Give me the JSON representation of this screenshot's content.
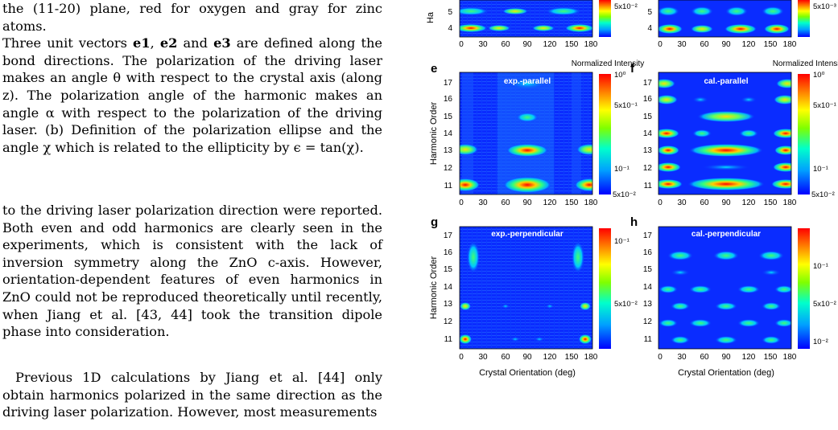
{
  "text_column": {
    "caption_lines": [
      "the (11-20) plane, red for oxygen and gray for zinc atoms.",
      "Three unit vectors ",
      "e1",
      ", ",
      "e2",
      " and ",
      "e3",
      " are defined along the bond directions. The polarization of the driving laser makes an angle θ with respect to the crystal axis (along z). The polarization angle of the harmonic makes an angle α with respect to the polarization of the driving laser. (b) Definition of the polarization ellipse and the angle χ which is related to the ellipticity by ϵ = tan(χ)."
    ],
    "paragraph1": "to the driving laser polarization direction were reported. Both even and odd harmonics are clearly seen in the experiments, which is consistent with the lack of inversion symmetry along the ZnO c-axis. However, orientation-dependent features of even harmonics in ZnO could not be reproduced theoretically until recently, when Jiang et al. [43, 44] took the transition dipole phase into consideration.",
    "paragraph2": "Previous 1D calculations by Jiang et al. [44] only obtain harmonics polarized in the same direction as the driving laser polarization. However, most measurements"
  },
  "figure": {
    "panels_top_partial": {
      "left_ylabel_fragment": "Ha",
      "left_yticks": [
        "5",
        "4"
      ],
      "right_yticks": [
        "5",
        "4"
      ],
      "left_colorbar_tick": "5x10⁻²",
      "right_colorbar_tick": "5x10⁻³",
      "xticks": [
        "0",
        "30",
        "60",
        "90",
        "120",
        "150",
        "180"
      ]
    },
    "panels": [
      {
        "letter": "e",
        "title": "exp.-parallel",
        "colorbar_label": "Normalized Intensity",
        "colorbar_ticks": [
          "10⁰",
          "5x10⁻¹",
          "10⁻¹",
          "5x10⁻²"
        ],
        "ylabel": "Harmonic Order",
        "yticks": [
          "17",
          "16",
          "15",
          "14",
          "13",
          "12",
          "11"
        ],
        "xticks": [
          "0",
          "30",
          "60",
          "90",
          "120",
          "150",
          "180"
        ],
        "xlabel": ""
      },
      {
        "letter": "f",
        "title": "cal.-parallel",
        "colorbar_label": "Normalized Intensity",
        "colorbar_ticks": [
          "10⁰",
          "5x10⁻¹",
          "10⁻¹",
          "5x10⁻²"
        ],
        "ylabel": "",
        "yticks": [
          "17",
          "16",
          "15",
          "14",
          "13",
          "12",
          "11"
        ],
        "xticks": [
          "0",
          "30",
          "60",
          "90",
          "120",
          "150",
          "180"
        ],
        "xlabel": ""
      },
      {
        "letter": "g",
        "title": "exp.-perpendicular",
        "colorbar_label": "",
        "colorbar_ticks": [
          "10⁻¹",
          "5x10⁻²"
        ],
        "ylabel": "Harmonic Order",
        "yticks": [
          "17",
          "16",
          "15",
          "14",
          "13",
          "12",
          "11"
        ],
        "xticks": [
          "0",
          "30",
          "60",
          "90",
          "120",
          "150",
          "180"
        ],
        "xlabel": "Crystal Orientation (deg)"
      },
      {
        "letter": "h",
        "title": "cal.-perpendicular",
        "colorbar_label": "",
        "colorbar_ticks": [
          "10⁻¹",
          "5x10⁻²",
          "10⁻²"
        ],
        "ylabel": "",
        "yticks": [
          "17",
          "16",
          "15",
          "14",
          "13",
          "12",
          "11"
        ],
        "xticks": [
          "0",
          "30",
          "60",
          "90",
          "120",
          "150",
          "180"
        ],
        "xlabel": "Crystal Orientation (deg)"
      }
    ],
    "colors": {
      "map_background": "#0a2cff",
      "colorbar_stops": [
        "#0000ff",
        "#00a0ff",
        "#00ffcc",
        "#7fff00",
        "#ffff00",
        "#ff8000",
        "#ff0000"
      ]
    }
  }
}
